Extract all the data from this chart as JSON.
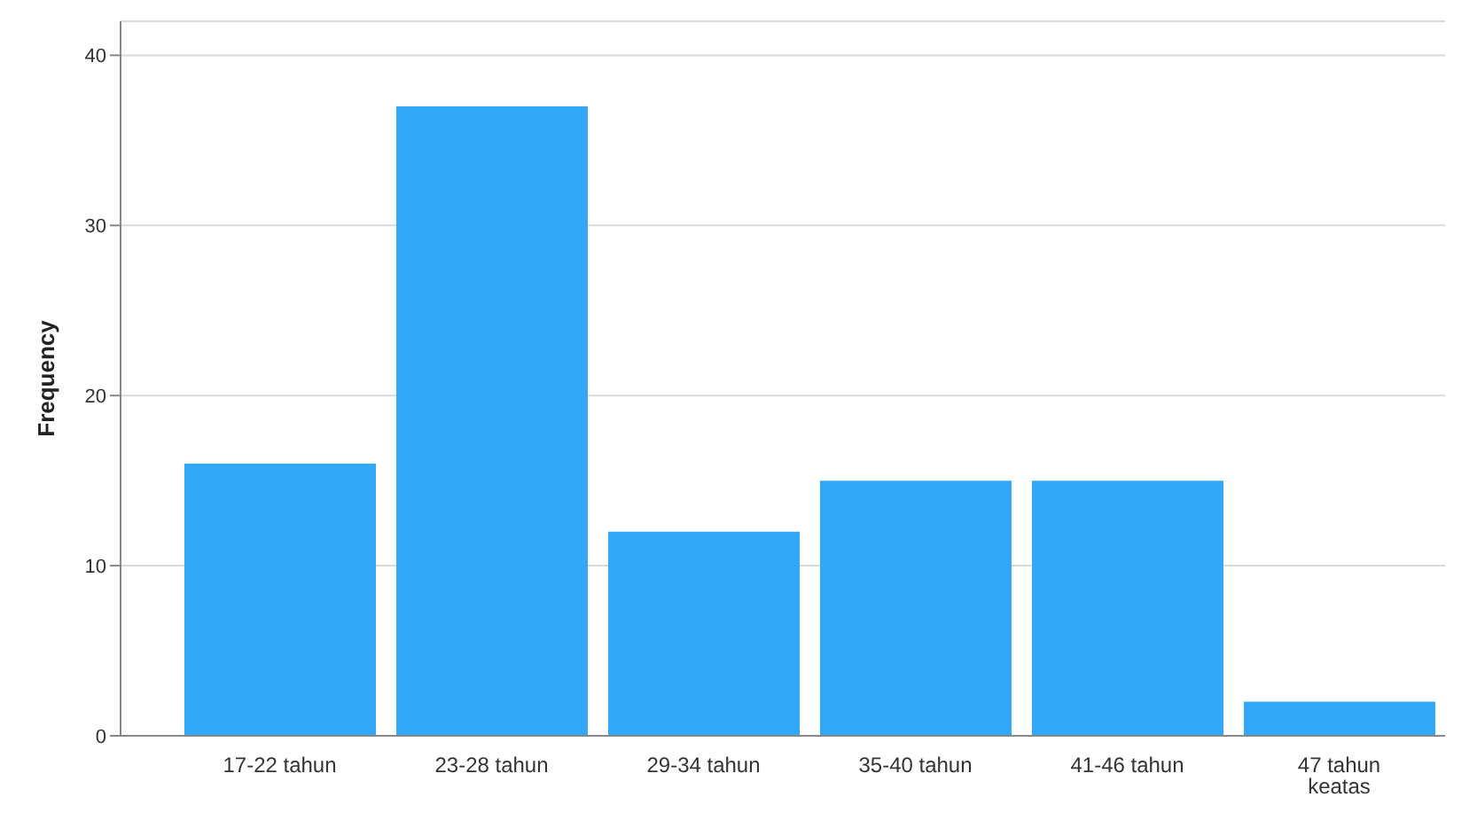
{
  "chart_data": {
    "type": "bar",
    "ylabel": "Frequency",
    "categories": [
      "17-22 tahun",
      "23-28 tahun",
      "29-34 tahun",
      "35-40 tahun",
      "41-46 tahun",
      "47 tahun keatas"
    ],
    "values": [
      16,
      37,
      12,
      15,
      15,
      2
    ],
    "color": "#33a8f8",
    "ylim": [
      0,
      42
    ],
    "yticks": [
      0,
      10,
      20,
      30,
      40
    ],
    "grid": "y"
  }
}
